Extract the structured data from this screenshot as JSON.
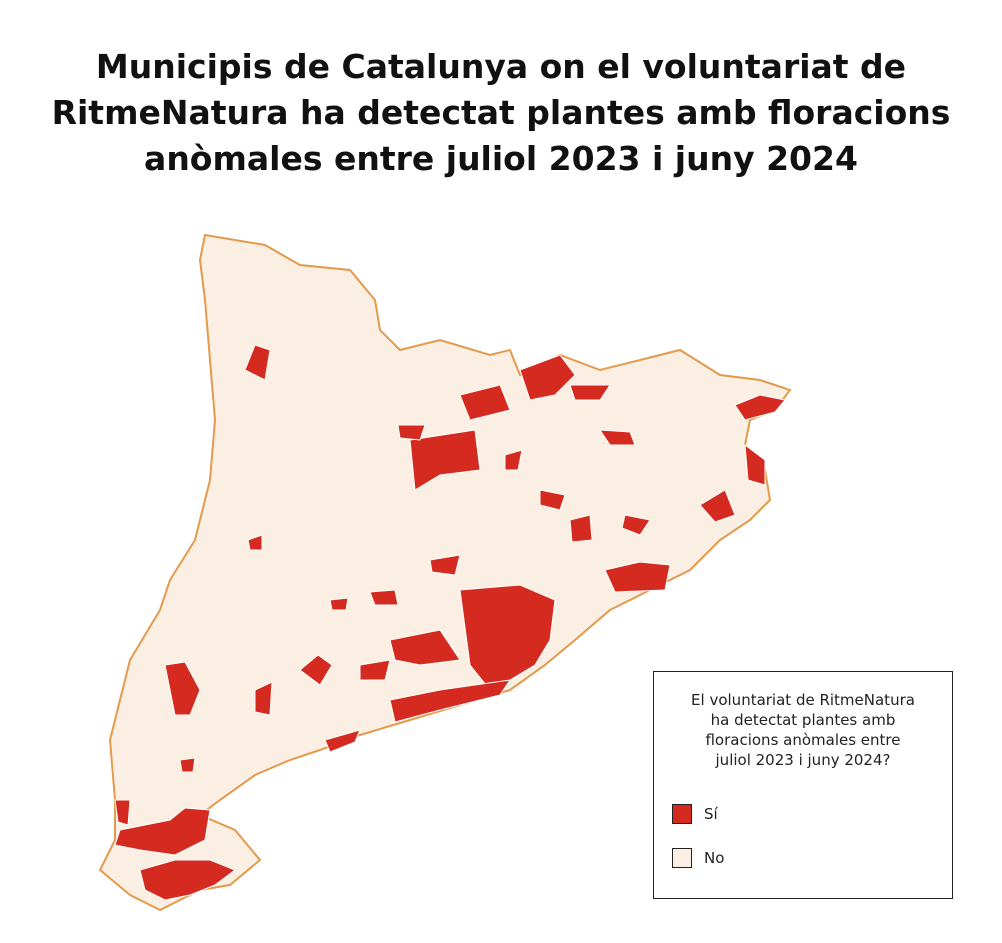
{
  "title_lines": [
    "Municipis de Catalunya on el voluntariat de",
    "RitmeNatura ha detectat plantes amb floracions",
    "anòmales entre juliol 2023 i juny 2024"
  ],
  "legend": {
    "title_lines": [
      "El voluntariat de RitmeNatura",
      "ha detectat plantes amb",
      "floracions anòmales entre",
      "juliol 2023 i juny 2024?"
    ],
    "items": [
      {
        "label": "Sí",
        "color": "#d42a20"
      },
      {
        "label": "No",
        "color": "#fbeee2"
      }
    ]
  }
}
